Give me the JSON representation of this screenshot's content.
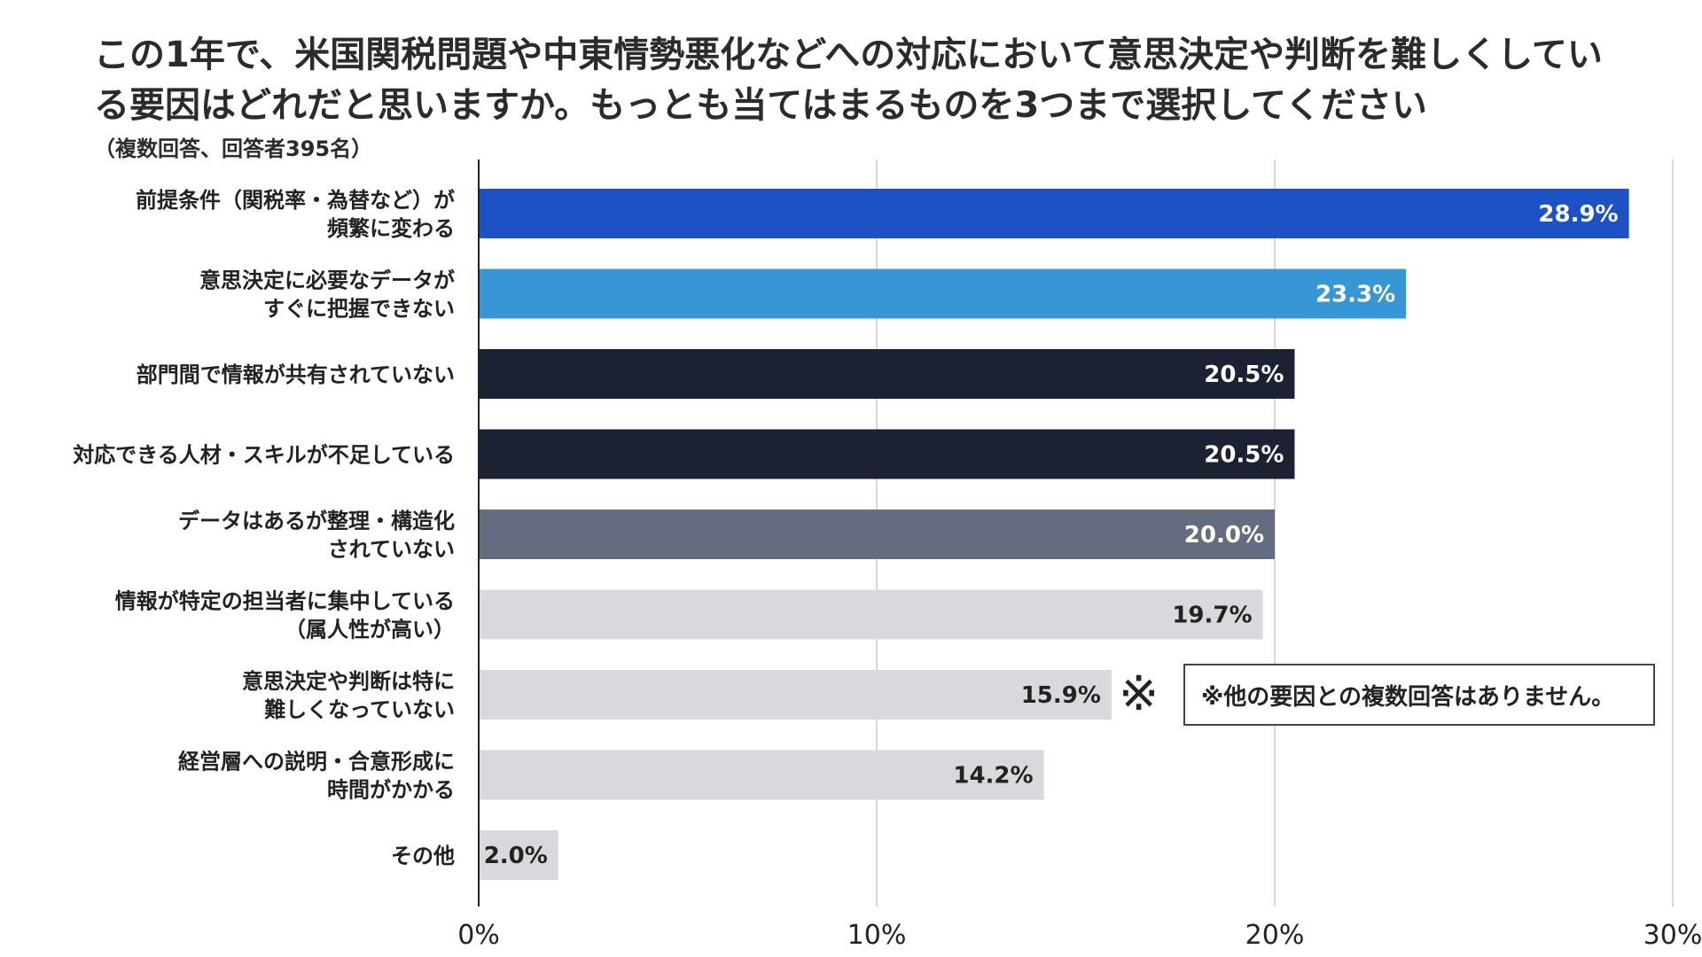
{
  "chart_data": {
    "type": "bar",
    "orientation": "horizontal",
    "title_lines": [
      "この1年で、米国関税問題や中東情勢悪化などへの対応において意思決定や判断を難しくしてい",
      "る要因はどれだと思いますか。もっとも当てはまるものを3つまで選択してください"
    ],
    "subtitle": "（複数回答、回答者395名）",
    "categories": [
      [
        "前提条件（関税率・為替など）が",
        "頻繁に変わる"
      ],
      [
        "意思決定に必要なデータが",
        "すぐに把握できない"
      ],
      [
        "部門間で情報が共有されていない"
      ],
      [
        "対応できる人材・スキルが不足している"
      ],
      [
        "データはあるが整理・構造化",
        "されていない"
      ],
      [
        "情報が特定の担当者に集中している",
        "（属人性が高い）"
      ],
      [
        "意思決定や判断は特に",
        "難しくなっていない"
      ],
      [
        "経営層への説明・合意形成に",
        "時間がかかる"
      ],
      [
        "その他"
      ]
    ],
    "values": [
      28.9,
      23.3,
      20.5,
      20.5,
      20.0,
      19.7,
      15.9,
      14.2,
      2.0
    ],
    "value_labels": [
      "28.9%",
      "23.3%",
      "20.5%",
      "20.5%",
      "20.0%",
      "19.7%",
      "15.9%",
      "14.2%",
      "2.0%"
    ],
    "bar_colors": [
      "#1c52c4",
      "#3796d4",
      "#1d2233",
      "#1d2233",
      "#656c80",
      "#d8d9dd",
      "#d8d9dd",
      "#d8d9dd",
      "#d8d9dd"
    ],
    "label_colors": [
      "#ffffff",
      "#ffffff",
      "#ffffff",
      "#ffffff",
      "#ffffff",
      "#222222",
      "#222222",
      "#222222",
      "#222222"
    ],
    "x_ticks": [
      0,
      10,
      20,
      30
    ],
    "x_tick_labels": [
      "0%",
      "10%",
      "20%",
      "30%"
    ],
    "xlim": [
      0,
      30
    ],
    "grid": true,
    "xlabel": "",
    "ylabel": "",
    "annotation": {
      "mark": "※",
      "category_index": 6,
      "note": "※他の要因との複数回答はありません。"
    }
  },
  "colors": {
    "axis": "#222222",
    "grid": "#cccccc"
  }
}
